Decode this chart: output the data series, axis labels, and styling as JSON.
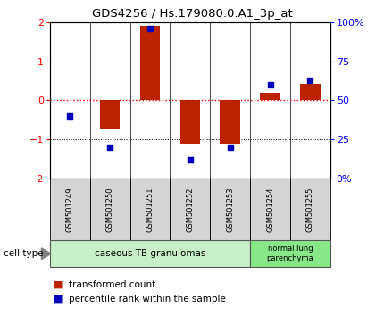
{
  "title": "GDS4256 / Hs.179080.0.A1_3p_at",
  "samples": [
    "GSM501249",
    "GSM501250",
    "GSM501251",
    "GSM501252",
    "GSM501253",
    "GSM501254",
    "GSM501255"
  ],
  "red_values": [
    0.0,
    -0.75,
    1.9,
    -1.1,
    -1.1,
    0.2,
    0.42
  ],
  "blue_values": [
    40,
    20,
    96,
    12,
    20,
    60,
    63
  ],
  "ylim": [
    -2,
    2
  ],
  "y2lim": [
    0,
    100
  ],
  "yticks_left": [
    -2,
    -1,
    0,
    1,
    2
  ],
  "yticks_right": [
    0,
    25,
    50,
    75,
    100
  ],
  "red_color": "#bb2200",
  "blue_color": "#0000bb",
  "group1_label": "caseous TB granulomas",
  "group2_label": "normal lung\nparenchyma",
  "group1_color": "#c8f0c8",
  "group2_color": "#88e888",
  "sample_box_color": "#d4d4d4",
  "bar_width": 0.5,
  "cell_type_label": "cell type",
  "legend_red": "transformed count",
  "legend_blue": "percentile rank within the sample",
  "background_color": "#ffffff"
}
